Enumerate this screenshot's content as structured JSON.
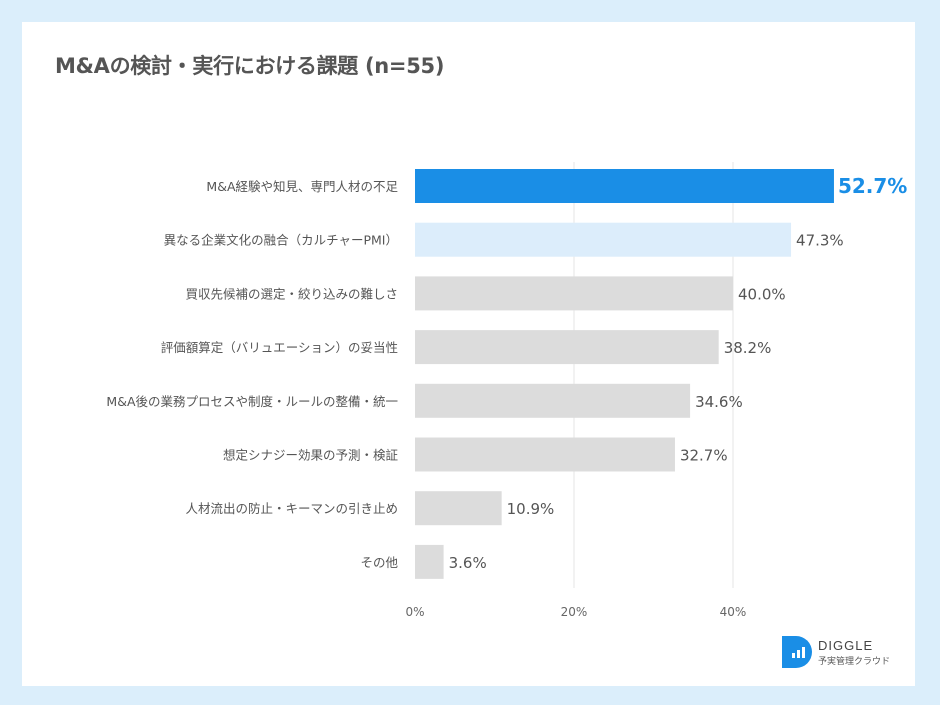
{
  "chart_data": {
    "type": "bar",
    "orientation": "horizontal",
    "title": "M&Aの検討・実行における課題 (n=55)",
    "categories": [
      "M&A経験や知見、専門人材の不足",
      "異なる企業文化の融合（カルチャーPMI）",
      "買収先候補の選定・絞り込みの難しさ",
      "評価額算定（バリュエーション）の妥当性",
      "M&A後の業務プロセスや制度・ルールの整備・統一",
      "想定シナジー効果の予測・検証",
      "人材流出の防止・キーマンの引き止め",
      "その他"
    ],
    "values": [
      52.7,
      47.3,
      40.0,
      38.2,
      34.6,
      32.7,
      10.9,
      3.6
    ],
    "value_labels": [
      "52.7%",
      "47.3%",
      "40.0%",
      "38.2%",
      "34.6%",
      "32.7%",
      "10.9%",
      "3.6%"
    ],
    "xlim": [
      0,
      52.7
    ],
    "xticks": [
      "0%",
      "20%",
      "40%"
    ],
    "xtick_values": [
      0,
      20,
      40
    ],
    "grid": "vertical",
    "colors": {
      "highlight": "#1a8ee6",
      "second": "#dcedfb",
      "other": "#dcdcdc",
      "highlight_label": "#1a8ee6"
    }
  },
  "logo": {
    "name": "DIGGLE",
    "tagline": "予実管理クラウド",
    "color": "#1a8ee6"
  }
}
